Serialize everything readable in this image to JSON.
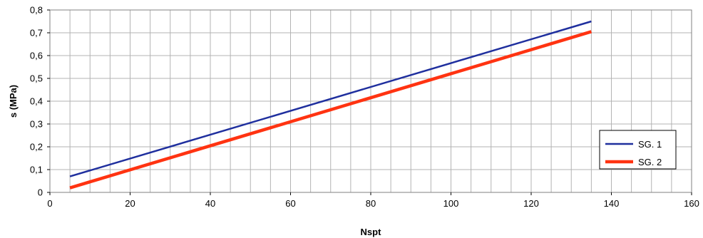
{
  "chart_data": {
    "type": "line",
    "xlabel": "Nspt",
    "ylabel": "s (MPa)",
    "xlim": [
      0,
      160
    ],
    "ylim": [
      0,
      0.8
    ],
    "x_ticks": [
      "0",
      "20",
      "40",
      "60",
      "80",
      "100",
      "120",
      "140",
      "160"
    ],
    "y_ticks": [
      "0",
      "0,1",
      "0,2",
      "0,3",
      "0,4",
      "0,5",
      "0,6",
      "0,7",
      "0,8"
    ],
    "grid": true,
    "legend_position": "right",
    "series": [
      {
        "name": "SG. 1",
        "color": "#1f2f9e",
        "x": [
          5,
          135
        ],
        "y": [
          0.07,
          0.75
        ]
      },
      {
        "name": "SG. 2",
        "color": "#ff3311",
        "x": [
          5,
          135
        ],
        "y": [
          0.02,
          0.705
        ]
      }
    ]
  }
}
